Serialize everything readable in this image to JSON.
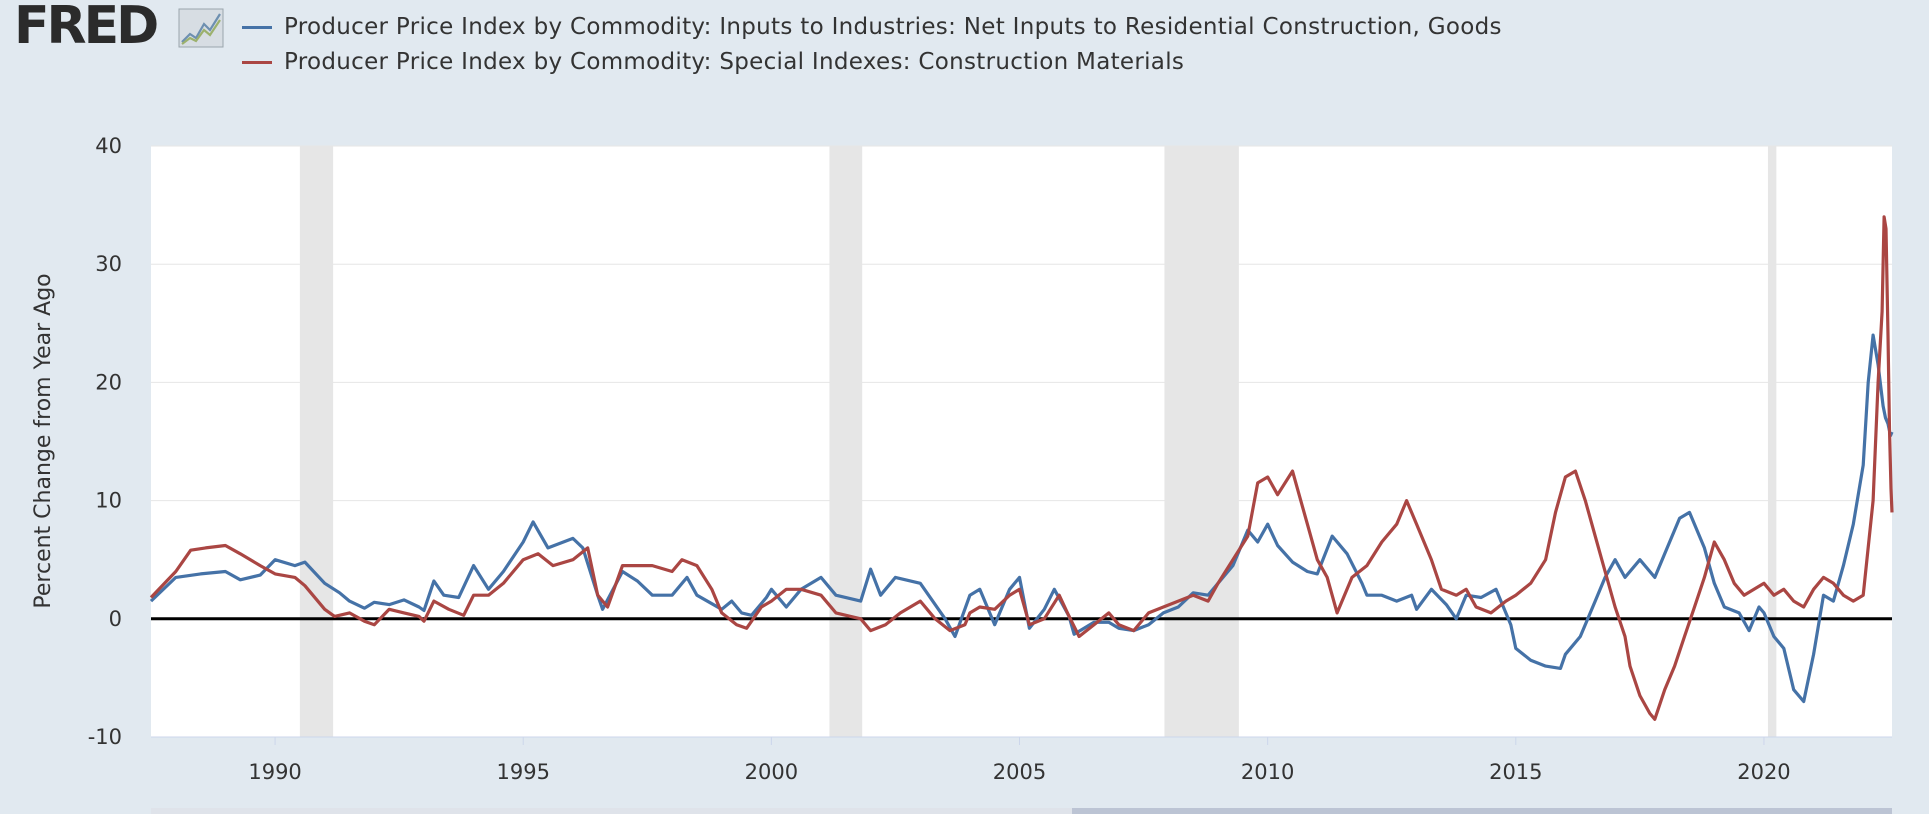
{
  "brand": {
    "logo_text": "FRED"
  },
  "legend": [
    {
      "label": "Producer Price Index by Commodity: Inputs to Industries: Net Inputs to Residential Construction, Goods",
      "color": "#4572a7"
    },
    {
      "label": "Producer Price Index by Commodity: Special Indexes: Construction Materials",
      "color": "#aa4643"
    }
  ],
  "chart_data": {
    "type": "line",
    "title": "",
    "ylabel": "Percent Change from Year Ago",
    "xlabel": "",
    "xlim": [
      1987.5,
      2022.58
    ],
    "ylim": [
      -10,
      40
    ],
    "yticks": [
      -10,
      0,
      10,
      20,
      30,
      40
    ],
    "xticks": [
      1990,
      1995,
      2000,
      2005,
      2010,
      2015,
      2020
    ],
    "grid": true,
    "zero_line": true,
    "recessions": [
      [
        1990.5,
        1991.17
      ],
      [
        2001.17,
        2001.83
      ],
      [
        2007.92,
        2009.42
      ],
      [
        2020.08,
        2020.25
      ]
    ],
    "series": [
      {
        "name": "Producer Price Index by Commodity: Inputs to Industries: Net Inputs to Residential Construction, Goods",
        "color": "#4572a7",
        "points": [
          [
            1987.5,
            1.5
          ],
          [
            1988.0,
            3.5
          ],
          [
            1988.5,
            3.8
          ],
          [
            1989.0,
            4.0
          ],
          [
            1989.3,
            3.3
          ],
          [
            1989.7,
            3.7
          ],
          [
            1990.0,
            5.0
          ],
          [
            1990.4,
            4.5
          ],
          [
            1990.6,
            4.8
          ],
          [
            1991.0,
            3.0
          ],
          [
            1991.3,
            2.2
          ],
          [
            1991.5,
            1.5
          ],
          [
            1991.8,
            0.9
          ],
          [
            1992.0,
            1.4
          ],
          [
            1992.3,
            1.2
          ],
          [
            1992.6,
            1.6
          ],
          [
            1992.9,
            1.0
          ],
          [
            1993.0,
            0.7
          ],
          [
            1993.2,
            3.2
          ],
          [
            1993.4,
            2.0
          ],
          [
            1993.7,
            1.8
          ],
          [
            1994.0,
            4.5
          ],
          [
            1994.3,
            2.5
          ],
          [
            1994.6,
            4.0
          ],
          [
            1995.0,
            6.5
          ],
          [
            1995.2,
            8.2
          ],
          [
            1995.5,
            6.0
          ],
          [
            1996.0,
            6.8
          ],
          [
            1996.2,
            6.0
          ],
          [
            1996.5,
            2.0
          ],
          [
            1996.6,
            0.8
          ],
          [
            1997.0,
            4.0
          ],
          [
            1997.3,
            3.2
          ],
          [
            1997.6,
            2.0
          ],
          [
            1998.0,
            2.0
          ],
          [
            1998.3,
            3.5
          ],
          [
            1998.5,
            2.0
          ],
          [
            1999.0,
            0.8
          ],
          [
            1999.2,
            1.5
          ],
          [
            1999.4,
            0.5
          ],
          [
            1999.6,
            0.3
          ],
          [
            1999.9,
            1.8
          ],
          [
            2000.0,
            2.5
          ],
          [
            2000.3,
            1.0
          ],
          [
            2000.6,
            2.5
          ],
          [
            2001.0,
            3.5
          ],
          [
            2001.3,
            2.0
          ],
          [
            2001.8,
            1.5
          ],
          [
            2002.0,
            4.2
          ],
          [
            2002.2,
            2.0
          ],
          [
            2002.5,
            3.5
          ],
          [
            2003.0,
            3.0
          ],
          [
            2003.5,
            0.0
          ],
          [
            2003.7,
            -1.5
          ],
          [
            2004.0,
            2.0
          ],
          [
            2004.2,
            2.5
          ],
          [
            2004.5,
            -0.5
          ],
          [
            2004.8,
            2.5
          ],
          [
            2005.0,
            3.5
          ],
          [
            2005.2,
            -0.8
          ],
          [
            2005.5,
            0.8
          ],
          [
            2005.7,
            2.5
          ],
          [
            2006.0,
            0.2
          ],
          [
            2006.1,
            -1.3
          ],
          [
            2006.5,
            -0.3
          ],
          [
            2006.8,
            -0.3
          ],
          [
            2007.0,
            -0.8
          ],
          [
            2007.3,
            -1.0
          ],
          [
            2007.6,
            -0.5
          ],
          [
            2007.9,
            0.5
          ],
          [
            2008.2,
            1.0
          ],
          [
            2008.5,
            2.2
          ],
          [
            2008.8,
            2.0
          ],
          [
            2009.0,
            3.0
          ],
          [
            2009.3,
            4.5
          ],
          [
            2009.6,
            7.5
          ],
          [
            2009.8,
            6.5
          ],
          [
            2010.0,
            8.0
          ],
          [
            2010.2,
            6.2
          ],
          [
            2010.5,
            4.8
          ],
          [
            2010.8,
            4.0
          ],
          [
            2011.0,
            3.8
          ],
          [
            2011.3,
            7.0
          ],
          [
            2011.6,
            5.5
          ],
          [
            2011.9,
            3.0
          ],
          [
            2012.0,
            2.0
          ],
          [
            2012.3,
            2.0
          ],
          [
            2012.6,
            1.5
          ],
          [
            2012.9,
            2.0
          ],
          [
            2013.0,
            0.8
          ],
          [
            2013.3,
            2.5
          ],
          [
            2013.6,
            1.2
          ],
          [
            2013.8,
            0.0
          ],
          [
            2014.0,
            2.0
          ],
          [
            2014.3,
            1.8
          ],
          [
            2014.6,
            2.5
          ],
          [
            2014.9,
            -0.5
          ],
          [
            2015.0,
            -2.5
          ],
          [
            2015.3,
            -3.5
          ],
          [
            2015.6,
            -4.0
          ],
          [
            2015.9,
            -4.2
          ],
          [
            2016.0,
            -3.0
          ],
          [
            2016.3,
            -1.5
          ],
          [
            2016.6,
            1.5
          ],
          [
            2016.8,
            3.5
          ],
          [
            2017.0,
            5.0
          ],
          [
            2017.2,
            3.5
          ],
          [
            2017.5,
            5.0
          ],
          [
            2017.8,
            3.5
          ],
          [
            2018.0,
            5.5
          ],
          [
            2018.3,
            8.5
          ],
          [
            2018.5,
            9.0
          ],
          [
            2018.8,
            6.0
          ],
          [
            2019.0,
            3.0
          ],
          [
            2019.2,
            1.0
          ],
          [
            2019.5,
            0.5
          ],
          [
            2019.7,
            -1.0
          ],
          [
            2019.9,
            1.0
          ],
          [
            2020.0,
            0.5
          ],
          [
            2020.2,
            -1.5
          ],
          [
            2020.4,
            -2.5
          ],
          [
            2020.6,
            -6.0
          ],
          [
            2020.8,
            -7.0
          ],
          [
            2021.0,
            -3.0
          ],
          [
            2021.2,
            2.0
          ],
          [
            2021.4,
            1.5
          ],
          [
            2021.6,
            4.5
          ],
          [
            2021.8,
            8.0
          ],
          [
            2022.0,
            13.0
          ],
          [
            2022.1,
            20.0
          ],
          [
            2022.2,
            24.0
          ],
          [
            2022.3,
            21.5
          ],
          [
            2022.4,
            18.0
          ],
          [
            2022.45,
            17.0
          ],
          [
            2022.5,
            16.5
          ],
          [
            2022.55,
            15.5
          ],
          [
            2022.58,
            15.8
          ]
        ]
      },
      {
        "name": "Producer Price Index by Commodity: Special Indexes: Construction Materials",
        "color": "#aa4643",
        "points": [
          [
            1987.5,
            1.8
          ],
          [
            1988.0,
            4.0
          ],
          [
            1988.3,
            5.8
          ],
          [
            1988.6,
            6.0
          ],
          [
            1989.0,
            6.2
          ],
          [
            1989.3,
            5.5
          ],
          [
            1989.7,
            4.5
          ],
          [
            1990.0,
            3.8
          ],
          [
            1990.4,
            3.5
          ],
          [
            1990.6,
            2.8
          ],
          [
            1991.0,
            0.8
          ],
          [
            1991.2,
            0.2
          ],
          [
            1991.5,
            0.5
          ],
          [
            1991.8,
            -0.2
          ],
          [
            1992.0,
            -0.5
          ],
          [
            1992.3,
            0.8
          ],
          [
            1992.6,
            0.5
          ],
          [
            1992.9,
            0.2
          ],
          [
            1993.0,
            -0.2
          ],
          [
            1993.2,
            1.5
          ],
          [
            1993.5,
            0.8
          ],
          [
            1993.8,
            0.3
          ],
          [
            1994.0,
            2.0
          ],
          [
            1994.3,
            2.0
          ],
          [
            1994.6,
            3.0
          ],
          [
            1995.0,
            5.0
          ],
          [
            1995.3,
            5.5
          ],
          [
            1995.6,
            4.5
          ],
          [
            1996.0,
            5.0
          ],
          [
            1996.3,
            6.0
          ],
          [
            1996.5,
            2.0
          ],
          [
            1996.7,
            1.0
          ],
          [
            1997.0,
            4.5
          ],
          [
            1997.3,
            4.5
          ],
          [
            1997.6,
            4.5
          ],
          [
            1998.0,
            4.0
          ],
          [
            1998.2,
            5.0
          ],
          [
            1998.5,
            4.5
          ],
          [
            1998.8,
            2.5
          ],
          [
            1999.0,
            0.5
          ],
          [
            1999.3,
            -0.5
          ],
          [
            1999.5,
            -0.8
          ],
          [
            1999.8,
            1.0
          ],
          [
            2000.0,
            1.5
          ],
          [
            2000.3,
            2.5
          ],
          [
            2000.6,
            2.5
          ],
          [
            2001.0,
            2.0
          ],
          [
            2001.3,
            0.5
          ],
          [
            2001.8,
            0.0
          ],
          [
            2002.0,
            -1.0
          ],
          [
            2002.3,
            -0.5
          ],
          [
            2002.6,
            0.5
          ],
          [
            2003.0,
            1.5
          ],
          [
            2003.3,
            0.0
          ],
          [
            2003.6,
            -1.0
          ],
          [
            2003.9,
            -0.5
          ],
          [
            2004.0,
            0.5
          ],
          [
            2004.2,
            1.0
          ],
          [
            2004.5,
            0.8
          ],
          [
            2004.8,
            2.0
          ],
          [
            2005.0,
            2.5
          ],
          [
            2005.2,
            -0.5
          ],
          [
            2005.5,
            0.0
          ],
          [
            2005.8,
            2.0
          ],
          [
            2006.0,
            0.2
          ],
          [
            2006.2,
            -1.5
          ],
          [
            2006.5,
            -0.5
          ],
          [
            2006.8,
            0.5
          ],
          [
            2007.0,
            -0.5
          ],
          [
            2007.3,
            -1.0
          ],
          [
            2007.6,
            0.5
          ],
          [
            2007.9,
            1.0
          ],
          [
            2008.2,
            1.5
          ],
          [
            2008.5,
            2.0
          ],
          [
            2008.8,
            1.5
          ],
          [
            2009.0,
            3.0
          ],
          [
            2009.3,
            5.0
          ],
          [
            2009.6,
            7.0
          ],
          [
            2009.8,
            11.5
          ],
          [
            2010.0,
            12.0
          ],
          [
            2010.2,
            10.5
          ],
          [
            2010.5,
            12.5
          ],
          [
            2010.8,
            8.0
          ],
          [
            2011.0,
            5.0
          ],
          [
            2011.2,
            3.5
          ],
          [
            2011.4,
            0.5
          ],
          [
            2011.7,
            3.5
          ],
          [
            2012.0,
            4.5
          ],
          [
            2012.3,
            6.5
          ],
          [
            2012.6,
            8.0
          ],
          [
            2012.8,
            10.0
          ],
          [
            2013.0,
            8.0
          ],
          [
            2013.3,
            5.0
          ],
          [
            2013.5,
            2.5
          ],
          [
            2013.8,
            2.0
          ],
          [
            2014.0,
            2.5
          ],
          [
            2014.2,
            1.0
          ],
          [
            2014.5,
            0.5
          ],
          [
            2014.8,
            1.5
          ],
          [
            2015.0,
            2.0
          ],
          [
            2015.3,
            3.0
          ],
          [
            2015.6,
            5.0
          ],
          [
            2015.8,
            9.0
          ],
          [
            2016.0,
            12.0
          ],
          [
            2016.2,
            12.5
          ],
          [
            2016.4,
            10.0
          ],
          [
            2016.6,
            7.0
          ],
          [
            2016.8,
            4.0
          ],
          [
            2017.0,
            1.0
          ],
          [
            2017.2,
            -1.5
          ],
          [
            2017.3,
            -4.0
          ],
          [
            2017.5,
            -6.5
          ],
          [
            2017.7,
            -8.0
          ],
          [
            2017.8,
            -8.5
          ],
          [
            2018.0,
            -6.0
          ],
          [
            2018.2,
            -4.0
          ],
          [
            2018.4,
            -1.5
          ],
          [
            2018.6,
            1.0
          ],
          [
            2018.8,
            3.5
          ],
          [
            2019.0,
            6.5
          ],
          [
            2019.2,
            5.0
          ],
          [
            2019.4,
            3.0
          ],
          [
            2019.6,
            2.0
          ],
          [
            2019.8,
            2.5
          ],
          [
            2020.0,
            3.0
          ],
          [
            2020.2,
            2.0
          ],
          [
            2020.4,
            2.5
          ],
          [
            2020.6,
            1.5
          ],
          [
            2020.8,
            1.0
          ],
          [
            2021.0,
            2.5
          ],
          [
            2021.2,
            3.5
          ],
          [
            2021.4,
            3.0
          ],
          [
            2021.6,
            2.0
          ],
          [
            2021.8,
            1.5
          ],
          [
            2022.0,
            2.0
          ],
          [
            2022.2,
            10.0
          ],
          [
            2022.3,
            20.0
          ],
          [
            2022.38,
            26.0
          ],
          [
            2022.42,
            34.0
          ],
          [
            2022.46,
            33.0
          ],
          [
            2022.5,
            24.0
          ],
          [
            2022.53,
            16.0
          ],
          [
            2022.56,
            11.0
          ],
          [
            2022.58,
            9.0
          ]
        ]
      }
    ]
  }
}
